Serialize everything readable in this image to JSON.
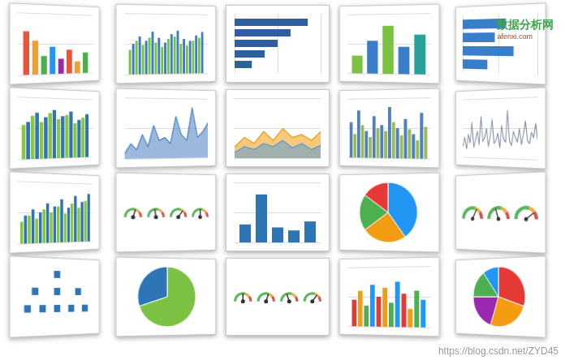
{
  "chart_data": [
    {
      "type": "bar",
      "categories": [
        null,
        null,
        null,
        null,
        null,
        null,
        null,
        null
      ],
      "values": [
        70,
        55,
        30,
        45,
        25,
        40,
        20,
        35
      ],
      "colors": [
        "#e8553a",
        "#f0a030",
        "#4caf50",
        "#2196f3",
        "#9c27b0",
        "#e8553a",
        "#f0a030",
        "#4caf50"
      ],
      "ylim": [
        0,
        100
      ],
      "yticks": [
        0,
        50,
        100
      ],
      "grid": true,
      "tick_labels": false
    },
    {
      "type": "bar",
      "categories": [
        null,
        null,
        null,
        null,
        null,
        null,
        null,
        null,
        null,
        null,
        null,
        null
      ],
      "series": [
        {
          "color": "#7cc242",
          "values": [
            40,
            55,
            48,
            60,
            52,
            45,
            58,
            62,
            50,
            47,
            55,
            60
          ]
        },
        {
          "color": "#3a7dc9",
          "values": [
            50,
            62,
            55,
            70,
            60,
            52,
            66,
            72,
            58,
            55,
            64,
            70
          ]
        }
      ],
      "ylim": [
        0,
        100
      ],
      "yticks": [
        0,
        50,
        100
      ],
      "grid": true,
      "tick_labels": false
    },
    {
      "type": "bar",
      "orientation": "horizontal",
      "categories": [
        null,
        null,
        null,
        null,
        null
      ],
      "values": [
        85,
        65,
        50,
        35,
        20
      ],
      "color": "#2f5f9e",
      "xlim": [
        0,
        100
      ],
      "xticks": [
        0,
        50,
        100
      ],
      "grid": true,
      "tick_labels": false
    },
    {
      "type": "bar",
      "categories": [
        null,
        null,
        null,
        null,
        null
      ],
      "values": [
        30,
        55,
        80,
        45,
        65
      ],
      "colors": [
        "#7cc242",
        "#3a7dc9",
        "#7cc242",
        "#3a7dc9",
        "#2aa198"
      ],
      "ylim": [
        0,
        100
      ],
      "yticks": [
        0,
        50,
        100
      ],
      "grid": true,
      "tick_labels": false
    },
    {
      "type": "bar",
      "orientation": "horizontal",
      "categories": [
        null,
        null,
        null,
        null
      ],
      "values": [
        60,
        45,
        70,
        35
      ],
      "color": "#3a7dc9",
      "xlim": [
        0,
        100
      ],
      "xticks": [
        0,
        50,
        100
      ],
      "grid": true,
      "tick_labels": false
    },
    {
      "type": "bar",
      "categories": [
        null,
        null,
        null,
        null,
        null,
        null,
        null,
        null
      ],
      "series": [
        {
          "color": "#8cc63f",
          "values": [
            55,
            70,
            60,
            75,
            65,
            72,
            58,
            68
          ]
        },
        {
          "color": "#2e75b6",
          "values": [
            60,
            75,
            68,
            80,
            70,
            78,
            64,
            74
          ]
        }
      ],
      "ylim": [
        0,
        100
      ],
      "yticks": [
        0,
        50,
        100
      ],
      "grid": true,
      "tick_labels": false
    },
    {
      "type": "area",
      "x": [
        1,
        2,
        3,
        4,
        5,
        6,
        7,
        8,
        9,
        10,
        11,
        12,
        13,
        14,
        15,
        16
      ],
      "values": [
        10,
        25,
        15,
        40,
        20,
        55,
        30,
        35,
        25,
        70,
        40,
        30,
        85,
        35,
        45,
        60
      ],
      "color": "#4a7fc1",
      "xlim": [
        1,
        16
      ],
      "ylim": [
        0,
        100
      ],
      "yticks": [
        0,
        50,
        100
      ],
      "grid": true,
      "tick_labels": false
    },
    {
      "type": "area",
      "x": [
        1,
        2,
        3,
        4,
        5,
        6,
        7,
        8,
        9,
        10
      ],
      "series": [
        {
          "color": "#f39c12",
          "values": [
            20,
            35,
            25,
            45,
            30,
            50,
            35,
            40,
            30,
            45
          ]
        },
        {
          "color": "#5b9bd5",
          "values": [
            10,
            20,
            15,
            25,
            20,
            30,
            18,
            25,
            15,
            22
          ]
        }
      ],
      "xlim": [
        1,
        10
      ],
      "ylim": [
        0,
        100
      ],
      "yticks": [
        0,
        50,
        100
      ],
      "grid": true,
      "tick_labels": false
    },
    {
      "type": "bar",
      "categories": [
        null,
        null,
        null,
        null,
        null,
        null,
        null,
        null,
        null,
        null
      ],
      "series": [
        {
          "color": "#4f81bd",
          "values": [
            60,
            80,
            45,
            70,
            55,
            85,
            50,
            65,
            40,
            75
          ]
        },
        {
          "color": "#9bbb59",
          "values": [
            40,
            55,
            35,
            50,
            45,
            60,
            38,
            48,
            30,
            52
          ]
        }
      ],
      "ylim": [
        0,
        100
      ],
      "yticks": [
        0,
        50,
        100
      ],
      "grid": true,
      "tick_labels": false
    },
    {
      "type": "line",
      "x": [
        1,
        2,
        3,
        4,
        5,
        6,
        7,
        8,
        9,
        10,
        11,
        12,
        13,
        14,
        15,
        16,
        17,
        18,
        19,
        20,
        21,
        22,
        23,
        24,
        25,
        26,
        27,
        28,
        29,
        30,
        31,
        32,
        33,
        34,
        35,
        36,
        37,
        38,
        39,
        40
      ],
      "values": [
        20,
        35,
        15,
        40,
        25,
        60,
        18,
        30,
        45,
        22,
        70,
        28,
        35,
        50,
        20,
        38,
        65,
        25,
        30,
        42,
        18,
        55,
        33,
        27,
        80,
        30,
        22,
        45,
        36,
        28,
        50,
        24,
        40,
        62,
        30,
        26,
        44,
        35,
        58,
        30
      ],
      "color": "#7f8fa6",
      "xlim": [
        1,
        40
      ],
      "ylim": [
        0,
        100
      ],
      "yticks": [
        0,
        50,
        100
      ],
      "grid": true,
      "tick_labels": false
    },
    {
      "type": "bar",
      "categories": [
        null,
        null,
        null,
        null,
        null,
        null,
        null,
        null,
        null,
        null
      ],
      "series": [
        {
          "color": "#8cc63f",
          "values": [
            35,
            45,
            40,
            55,
            50,
            60,
            48,
            65,
            58,
            70
          ]
        },
        {
          "color": "#2e75b6",
          "values": [
            45,
            55,
            50,
            65,
            60,
            72,
            58,
            78,
            68,
            82
          ]
        }
      ],
      "ylim": [
        0,
        100
      ],
      "yticks": [
        0,
        50,
        100
      ],
      "grid": true,
      "tick_labels": false
    },
    {
      "type": "gauge",
      "values": [
        60,
        45,
        70,
        50
      ],
      "ylim": [
        0,
        100
      ],
      "tick_labels": false
    },
    {
      "type": "bar",
      "categories": [
        null,
        null,
        null,
        null,
        null
      ],
      "values": [
        30,
        80,
        25,
        20,
        35
      ],
      "color": "#2e75b6",
      "ylim": [
        0,
        100
      ],
      "yticks": [
        0,
        50,
        100
      ],
      "grid": true,
      "tick_labels": false
    },
    {
      "type": "pie",
      "values": [
        40,
        25,
        20,
        15
      ],
      "colors": [
        "#2196f3",
        "#f39c12",
        "#4caf50",
        "#e53935"
      ]
    },
    {
      "type": "gauge",
      "values": [
        65,
        40,
        80
      ],
      "ylim": [
        0,
        100
      ],
      "tick_labels": false
    },
    {
      "type": "scatter",
      "x": [
        5,
        2,
        5,
        8,
        1,
        3,
        5,
        7,
        9
      ],
      "y": [
        9,
        6,
        6,
        6,
        3,
        3,
        3,
        3,
        3
      ],
      "color": "#2e75b6",
      "marker": "square",
      "xlim": [
        0,
        10
      ],
      "ylim": [
        0,
        10
      ],
      "tick_labels": false
    },
    {
      "type": "pie",
      "values": [
        70,
        30
      ],
      "colors": [
        "#7cc242",
        "#2e75b6"
      ]
    },
    {
      "type": "gauge",
      "values": [
        50,
        60,
        40,
        70
      ],
      "ylim": [
        0,
        100
      ],
      "tick_labels": false
    },
    {
      "type": "bar",
      "categories": [
        null,
        null,
        null,
        null,
        null,
        null,
        null,
        null,
        null,
        null,
        null,
        null
      ],
      "values": [
        45,
        60,
        35,
        70,
        50,
        65,
        40,
        75,
        55,
        30,
        60,
        45
      ],
      "colors": [
        "#e53935",
        "#f39c12",
        "#4caf50",
        "#2196f3",
        "#e53935",
        "#f39c12",
        "#4caf50",
        "#2196f3",
        "#e53935",
        "#f39c12",
        "#4caf50",
        "#2196f3"
      ],
      "ylim": [
        0,
        100
      ],
      "yticks": [
        0,
        50,
        100
      ],
      "grid": true,
      "tick_labels": false
    },
    {
      "type": "pie",
      "values": [
        30,
        25,
        20,
        15,
        10
      ],
      "colors": [
        "#e53935",
        "#f39c12",
        "#9c27b0",
        "#4caf50",
        "#2196f3"
      ]
    }
  ],
  "watermarks": [
    "数据分析网",
    "afenxi.com",
    "https://blog.csdn.net/ZYD45"
  ]
}
